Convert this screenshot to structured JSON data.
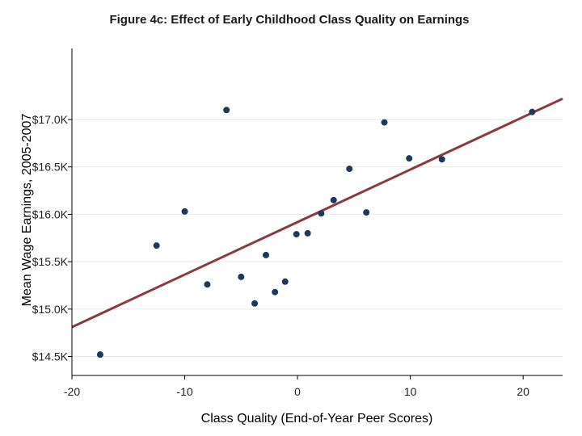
{
  "chart_data": {
    "type": "scatter",
    "title": "Figure 4c: Effect of Early Childhood Class Quality on Earnings",
    "xlabel": "Class Quality (End-of-Year Peer Scores)",
    "ylabel": "Mean Wage Earnings, 2005-2007",
    "xlim": [
      -20,
      23.5
    ],
    "ylim": [
      14.3,
      17.75
    ],
    "x_ticks": [
      -20,
      -10,
      0,
      10,
      20
    ],
    "x_tick_labels": [
      "-20",
      "-10",
      "0",
      "10",
      "20"
    ],
    "y_ticks": [
      14.5,
      15.0,
      15.5,
      16.0,
      16.5,
      17.0
    ],
    "y_tick_labels": [
      "$14.5K",
      "$15.0K",
      "$15.5K",
      "$16.0K",
      "$16.5K",
      "$17.0K"
    ],
    "grid": true,
    "points": [
      {
        "x": -17.5,
        "y": 14.52
      },
      {
        "x": -12.5,
        "y": 15.67
      },
      {
        "x": -10.0,
        "y": 16.03
      },
      {
        "x": -8.0,
        "y": 15.26
      },
      {
        "x": -6.3,
        "y": 17.1
      },
      {
        "x": -5.0,
        "y": 15.34
      },
      {
        "x": -3.8,
        "y": 15.06
      },
      {
        "x": -2.8,
        "y": 15.57
      },
      {
        "x": -2.0,
        "y": 15.18
      },
      {
        "x": -1.1,
        "y": 15.29
      },
      {
        "x": -0.1,
        "y": 15.79
      },
      {
        "x": 0.9,
        "y": 15.8
      },
      {
        "x": 2.1,
        "y": 16.01
      },
      {
        "x": 3.2,
        "y": 16.15
      },
      {
        "x": 4.6,
        "y": 16.48
      },
      {
        "x": 6.1,
        "y": 16.02
      },
      {
        "x": 7.7,
        "y": 16.97
      },
      {
        "x": 9.9,
        "y": 16.59
      },
      {
        "x": 12.8,
        "y": 16.58
      },
      {
        "x": 20.8,
        "y": 17.08
      }
    ],
    "fit_line": {
      "x": [
        -20,
        23.5
      ],
      "y": [
        14.81,
        17.22
      ]
    },
    "colors": {
      "points": "#1b3a5c",
      "fit_line": "#8b3a3e"
    }
  }
}
